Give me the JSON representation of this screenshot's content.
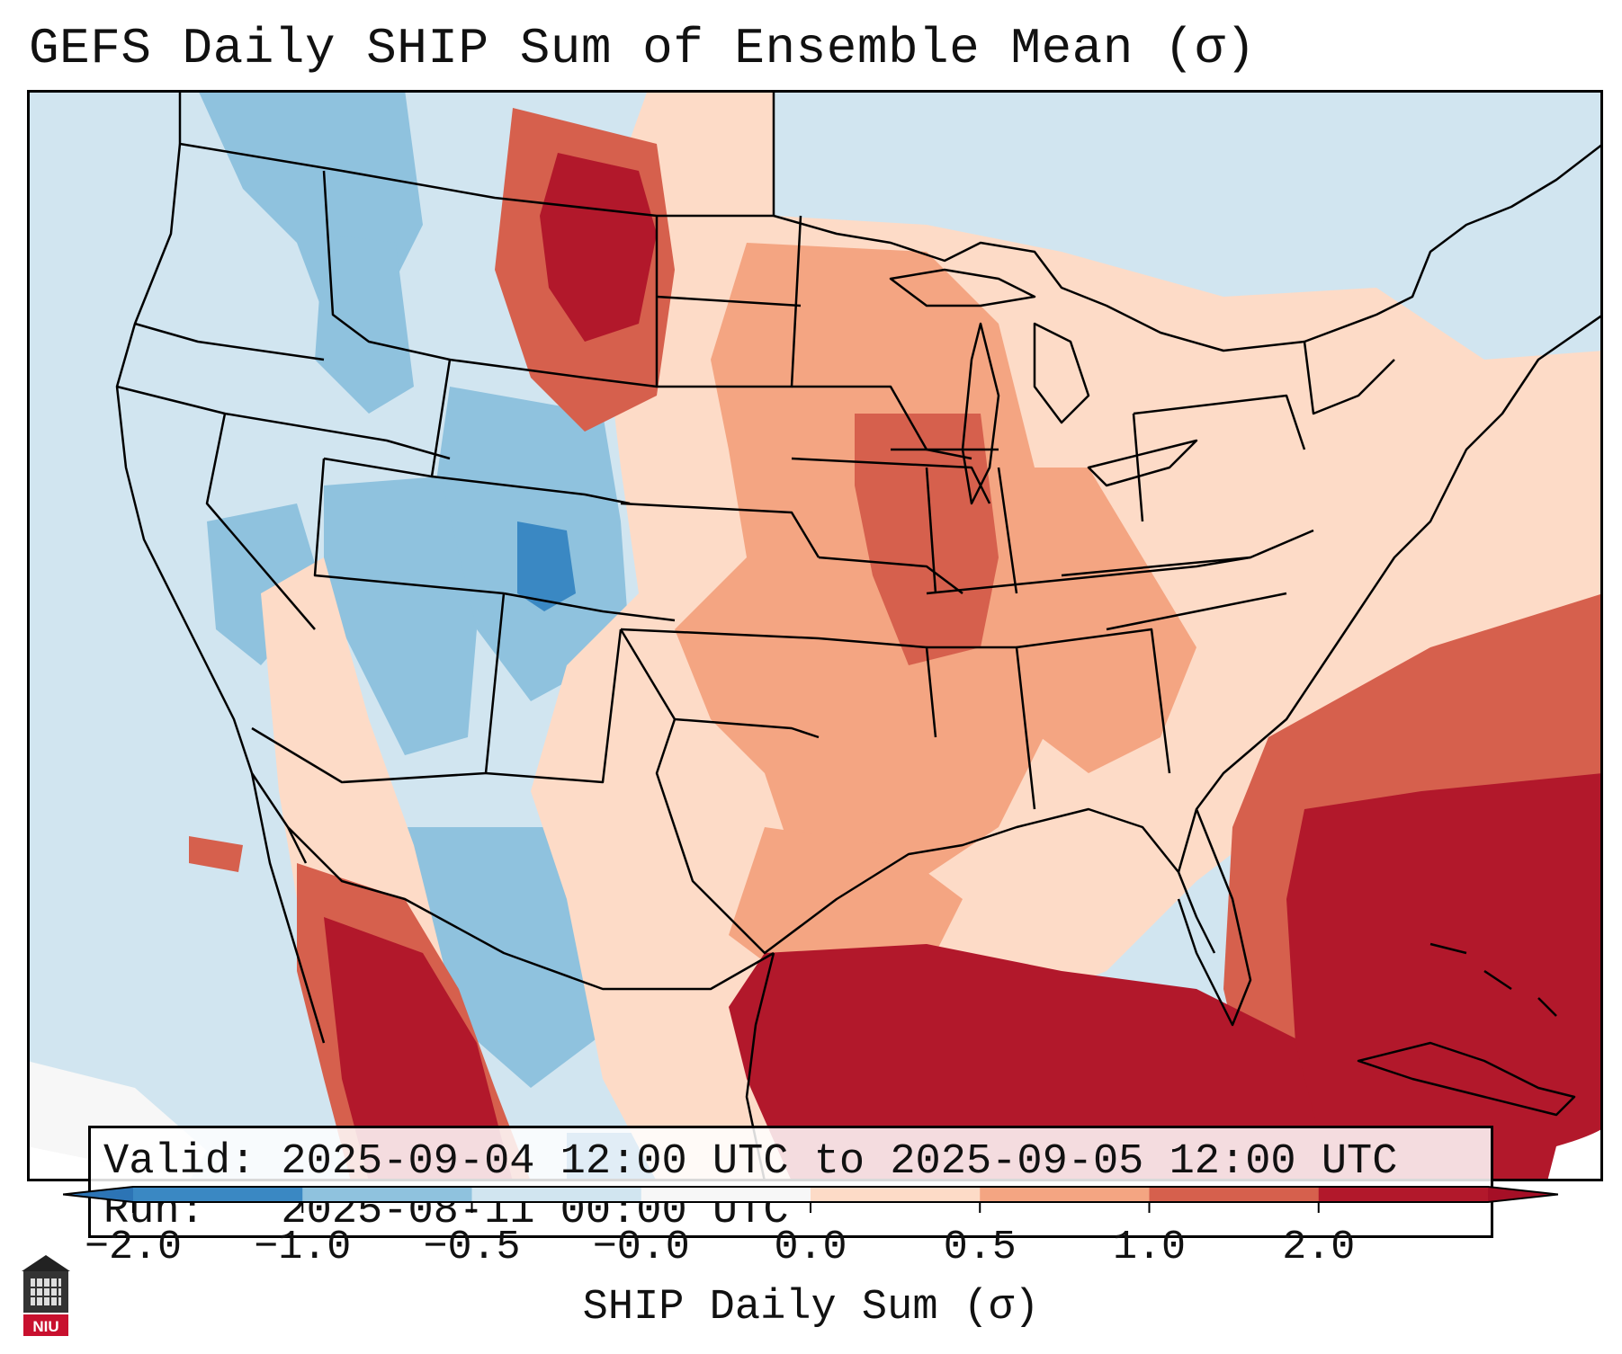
{
  "title": "GEFS Daily SHIP Sum of Ensemble Mean (σ)",
  "info": {
    "valid_line": "Valid: 2025-09-04 12:00 UTC to 2025-09-05 12:00 UTC",
    "run_line": "Run:   2025-08-11 00:00 UTC"
  },
  "colorbar": {
    "label": "SHIP Daily Sum (σ)",
    "ticks": [
      "−2.0",
      "−1.0",
      "−0.5",
      "−0.0",
      "0.0",
      "0.5",
      "1.0",
      "2.0"
    ],
    "colors": [
      "#3a88c3",
      "#8fc2de",
      "#d1e5f0",
      "#f7f7f7",
      "#fddbc7",
      "#f4a582",
      "#d6604d",
      "#b2182b"
    ],
    "extend_low_color": "#2c74b5",
    "extend_high_color": "#a50f26"
  },
  "colors": {
    "ocean_neutral": "#d1e5f0",
    "strong_pos": "#b2182b",
    "pos": "#d6604d",
    "mild_pos": "#f4a582",
    "weak_pos": "#fddbc7",
    "weak_neg": "#d1e5f0",
    "neg": "#8fc2de",
    "strong_neg": "#3a88c3"
  },
  "logo": {
    "text": "NIU"
  }
}
